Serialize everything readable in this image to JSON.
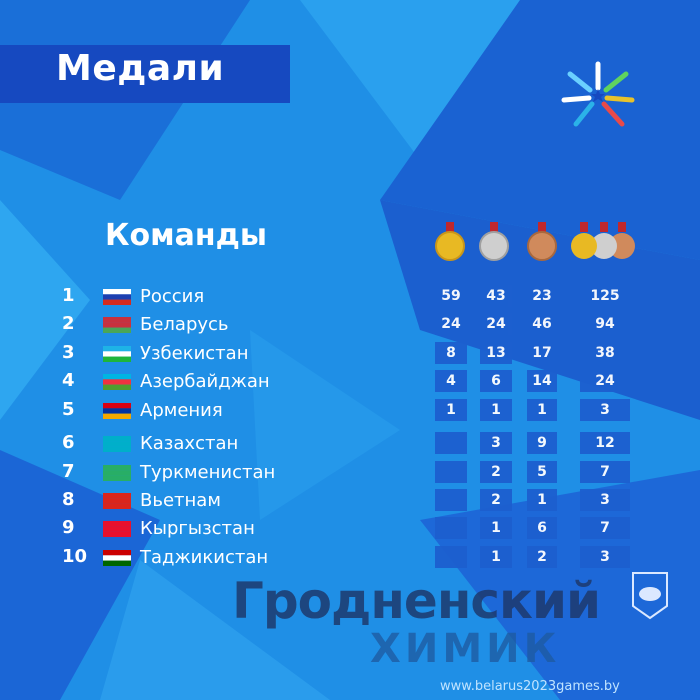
{
  "header": {
    "title": "Медали"
  },
  "section_title": "Команды",
  "columns": [
    {
      "icon": "gold-medal-icon",
      "color": "#e8b923"
    },
    {
      "icon": "silver-medal-icon",
      "color": "#c8c8c8"
    },
    {
      "icon": "bronze-medal-icon",
      "color": "#d08a5c"
    },
    {
      "icon": "all-medals-icon"
    }
  ],
  "rows": [
    {
      "rank": "1",
      "country": "Россия",
      "gold": "59",
      "silver": "43",
      "bronze": "23",
      "total": "125"
    },
    {
      "rank": "2",
      "country": "Беларусь",
      "gold": "24",
      "silver": "24",
      "bronze": "46",
      "total": "94"
    },
    {
      "rank": "3",
      "country": "Узбекистан",
      "gold": "8",
      "silver": "13",
      "bronze": "17",
      "total": "38"
    },
    {
      "rank": "4",
      "country": "Азербайджан",
      "gold": "4",
      "silver": "6",
      "bronze": "14",
      "total": "24"
    },
    {
      "rank": "5",
      "country": "Армения",
      "gold": "1",
      "silver": "1",
      "bronze": "1",
      "total": "3"
    },
    {
      "rank": "6",
      "country": "Казахстан",
      "gold": "",
      "silver": "3",
      "bronze": "9",
      "total": "12"
    },
    {
      "rank": "7",
      "country": "Туркменистан",
      "gold": "",
      "silver": "2",
      "bronze": "5",
      "total": "7"
    },
    {
      "rank": "8",
      "country": "Вьетнам",
      "gold": "",
      "silver": "2",
      "bronze": "1",
      "total": "3"
    },
    {
      "rank": "9",
      "country": "Кыргызстан",
      "gold": "",
      "silver": "1",
      "bronze": "6",
      "total": "7"
    },
    {
      "rank": "10",
      "country": "Таджикистан",
      "gold": "",
      "silver": "1",
      "bronze": "2",
      "total": "3"
    }
  ],
  "watermark": {
    "line1": "Гродненский",
    "line2": "ХИМИК"
  },
  "website": "www.belarus2023games.by"
}
